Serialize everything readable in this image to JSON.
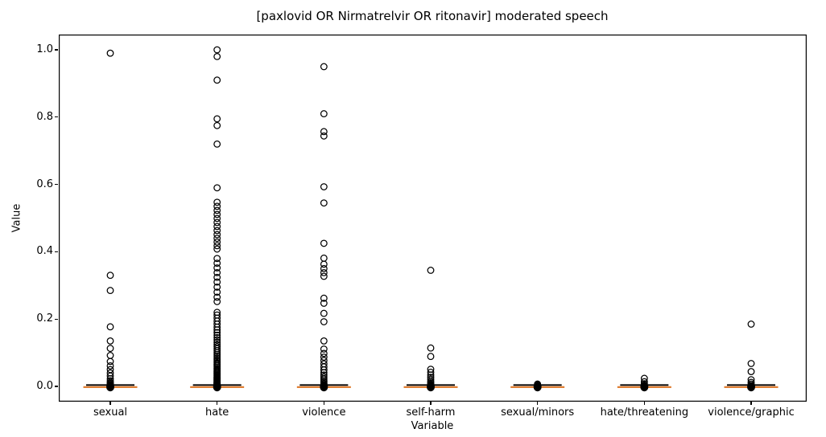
{
  "figure": {
    "title": "[paxlovid OR Nirmatrelvir OR ritonavir] moderated speech",
    "xlabel": "Variable",
    "ylabel": "Value"
  },
  "axis": {
    "yticks": [
      "0.0",
      "0.2",
      "0.4",
      "0.6",
      "0.8",
      "1.0"
    ],
    "ytick_values": [
      0.0,
      0.2,
      0.4,
      0.6,
      0.8,
      1.0
    ]
  },
  "chart_data": {
    "type": "boxplot",
    "title": "[paxlovid OR Nirmatrelvir OR ritonavir] moderated speech",
    "xlabel": "Variable",
    "ylabel": "Value",
    "ylim": [
      -0.045,
      1.045
    ],
    "grid": false,
    "legend": "none",
    "median_color": "#e07f33",
    "box_color": "#000000",
    "flier_color": "#000000",
    "categories": [
      "sexual",
      "hate",
      "violence",
      "self-harm",
      "sexual/minors",
      "hate/threatening",
      "violence/graphic"
    ],
    "series": [
      {
        "name": "sexual",
        "median": 0.0,
        "box_q1": 0.0,
        "box_q3": 0.0,
        "outliers": [
          0.99,
          0.33,
          0.285,
          0.177,
          0.135,
          0.113,
          0.092,
          0.074,
          0.061,
          0.05,
          0.04,
          0.031,
          0.023,
          0.017,
          0.012,
          0.009,
          0.006,
          0.004,
          0.0025,
          0.0015,
          0.0008,
          0
        ]
      },
      {
        "name": "hate",
        "median": 0.0,
        "box_q1": 0.0,
        "box_q3": 0.0,
        "outliers": [
          1.0,
          0.98,
          0.91,
          0.795,
          0.775,
          0.72,
          0.59,
          0.547,
          0.535,
          0.523,
          0.511,
          0.499,
          0.487,
          0.475,
          0.463,
          0.451,
          0.44,
          0.429,
          0.418,
          0.408,
          0.38,
          0.366,
          0.352,
          0.338,
          0.324,
          0.31,
          0.295,
          0.28,
          0.265,
          0.252,
          0.22,
          0.212,
          0.203,
          0.194,
          0.185,
          0.176,
          0.168,
          0.16,
          0.152,
          0.145,
          0.138,
          0.131,
          0.124,
          0.118,
          0.112,
          0.106,
          0.1,
          0.095,
          0.09,
          0.085,
          0.08,
          0.075,
          0.07,
          0.066,
          0.062,
          0.058,
          0.054,
          0.05,
          0.046,
          0.043,
          0.04,
          0.037,
          0.034,
          0.031,
          0.028,
          0.026,
          0.024,
          0.022,
          0.02,
          0.018,
          0.016,
          0.014,
          0.012,
          0.011,
          0.01,
          0.009,
          0.008,
          0.007,
          0.006,
          0.005,
          0.004,
          0.003,
          0.002,
          0.001,
          0
        ]
      },
      {
        "name": "violence",
        "median": 0.0,
        "box_q1": 0.0,
        "box_q3": 0.0,
        "outliers": [
          0.95,
          0.81,
          0.757,
          0.744,
          0.593,
          0.545,
          0.425,
          0.381,
          0.363,
          0.35,
          0.338,
          0.327,
          0.262,
          0.247,
          0.217,
          0.192,
          0.135,
          0.111,
          0.098,
          0.087,
          0.077,
          0.067,
          0.058,
          0.049,
          0.041,
          0.034,
          0.028,
          0.022,
          0.017,
          0.013,
          0.009,
          0.006,
          0.004,
          0.0025,
          0.001,
          0
        ]
      },
      {
        "name": "self-harm",
        "median": 0.0,
        "box_q1": 0.0,
        "box_q3": 0.0,
        "outliers": [
          0.345,
          0.114,
          0.089,
          0.051,
          0.042,
          0.034,
          0.027,
          0.021,
          0.015,
          0.011,
          0.007,
          0.0045,
          0.0025,
          0.001,
          0
        ]
      },
      {
        "name": "sexual/minors",
        "median": 0.0,
        "box_q1": 0.0,
        "box_q3": 0.0,
        "outliers": [
          0.007,
          0.004,
          0.002,
          0.001,
          0
        ]
      },
      {
        "name": "hate/threatening",
        "median": 0.0,
        "box_q1": 0.0,
        "box_q3": 0.0,
        "outliers": [
          0.024,
          0.014,
          0.008,
          0.004,
          0.002,
          0.001,
          0
        ]
      },
      {
        "name": "violence/graphic",
        "median": 0.0,
        "box_q1": 0.0,
        "box_q3": 0.0,
        "outliers": [
          0.185,
          0.068,
          0.044,
          0.02,
          0.012,
          0.007,
          0.003,
          0.001,
          0
        ]
      }
    ]
  }
}
